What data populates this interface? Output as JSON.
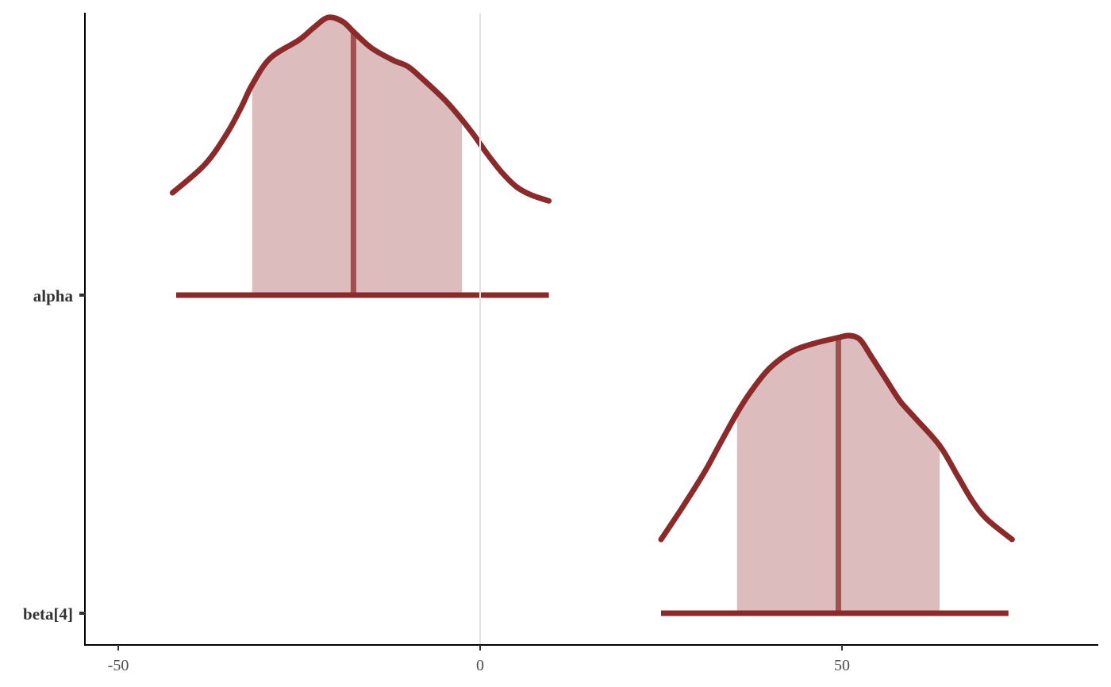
{
  "colors": {
    "outline": "#8b2a2a",
    "fill": "#dcbcbd",
    "median": "#a24f50",
    "refline": "#e3e3e3",
    "axis": "#000000"
  },
  "chart_data": {
    "type": "area",
    "title": "",
    "xlabel": "",
    "ylabel": "",
    "xlim": [
      -55,
      85
    ],
    "x_ticks": [
      {
        "value": -50,
        "label": "-50"
      },
      {
        "value": 0,
        "label": "0"
      },
      {
        "value": 50,
        "label": "50"
      }
    ],
    "reference_line": 0,
    "series": [
      {
        "name": "alpha",
        "range": [
          -42,
          9.5
        ],
        "interval": [
          -31.5,
          -2.5
        ],
        "median": -17.5,
        "density_x": [
          -42.5,
          -38,
          -35,
          -33,
          -31.5,
          -29,
          -25,
          -23,
          -21,
          -19,
          -17.5,
          -15,
          -12,
          -10,
          -8,
          -5,
          -3,
          -1,
          1,
          3,
          5,
          7,
          9.5
        ],
        "density_y": [
          0.14,
          0.28,
          0.43,
          0.56,
          0.67,
          0.8,
          0.89,
          0.95,
          1.0,
          0.98,
          0.93,
          0.85,
          0.79,
          0.76,
          0.7,
          0.6,
          0.52,
          0.43,
          0.33,
          0.24,
          0.17,
          0.13,
          0.1
        ]
      },
      {
        "name": "beta[4]",
        "range": [
          25,
          73
        ],
        "interval": [
          35.5,
          63.5
        ],
        "median": 49.5,
        "density_x": [
          25,
          28,
          31,
          33,
          35.5,
          37.5,
          40,
          43,
          46,
          49.5,
          51,
          52.5,
          54,
          56,
          58,
          60,
          63.5,
          66,
          68,
          70,
          73.5
        ],
        "density_y": [
          0.0,
          0.16,
          0.33,
          0.46,
          0.62,
          0.73,
          0.84,
          0.92,
          0.96,
          0.99,
          1.0,
          0.98,
          0.9,
          0.79,
          0.68,
          0.6,
          0.46,
          0.31,
          0.19,
          0.1,
          0.0
        ]
      }
    ]
  }
}
